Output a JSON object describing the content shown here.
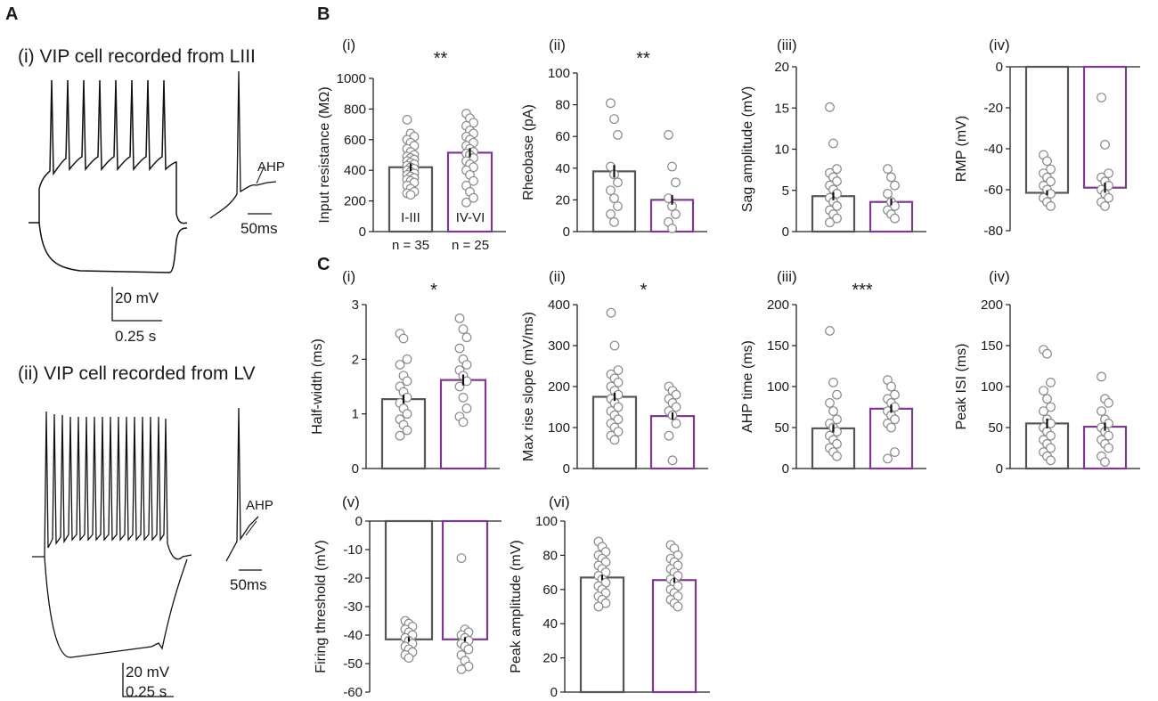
{
  "panel_labels": {
    "a": "A",
    "b": "B",
    "c": "C"
  },
  "traces": {
    "cell_i_title": "(i) VIP cell recorded from LIII",
    "cell_ii_title": "(ii) VIP cell recorded from LV",
    "scale_voltage": "20 mV",
    "scale_time": "0.25 s",
    "inset_time": "50ms",
    "ahp_label": "AHP"
  },
  "group_labels": {
    "g1": "I-III",
    "g2": "IV-VI",
    "n1": "n = 35",
    "n2": "n = 25"
  },
  "colors": {
    "group1": "#555555",
    "group2": "#7b3a8c",
    "dots": "#8a8a8a",
    "axis": "#222222"
  },
  "chart_data": [
    {
      "id": "Bi",
      "type": "bar",
      "tag": "(i)",
      "ylabel": "Input resistance (MΩ)",
      "sig": "**",
      "ylim": [
        0,
        1000
      ],
      "ticks": [
        0,
        200,
        400,
        600,
        800,
        1000
      ],
      "categories": [
        "I-III",
        "IV-VI"
      ],
      "values": [
        420,
        515
      ],
      "sem": [
        25,
        30
      ],
      "points": [
        [
          730,
          640,
          620,
          600,
          580,
          560,
          540,
          520,
          500,
          490,
          480,
          470,
          460,
          450,
          440,
          430,
          420,
          410,
          400,
          390,
          380,
          370,
          360,
          350,
          340,
          330,
          320,
          300,
          280,
          260,
          250,
          240
        ],
        [
          770,
          740,
          710,
          690,
          660,
          640,
          620,
          600,
          580,
          560,
          540,
          520,
          510,
          500,
          480,
          460,
          440,
          420,
          400,
          370,
          330,
          300,
          260,
          220,
          190
        ]
      ]
    },
    {
      "id": "Bii",
      "type": "bar",
      "tag": "(ii)",
      "ylabel": "Rheobase (pA)",
      "sig": "**",
      "ylim": [
        0,
        100
      ],
      "ticks": [
        0,
        20,
        40,
        60,
        80,
        100
      ],
      "categories": [
        "I-III",
        "IV-VI"
      ],
      "values": [
        38,
        20
      ],
      "sem": [
        4,
        3
      ],
      "points": [
        [
          81,
          71,
          61,
          41,
          36,
          31,
          26,
          21,
          16,
          11,
          6
        ],
        [
          61,
          41,
          31,
          21,
          16,
          11,
          6,
          2
        ]
      ]
    },
    {
      "id": "Biii",
      "type": "bar",
      "tag": "(iii)",
      "ylabel": "Sag amplitude (mV)",
      "sig": "",
      "ylim": [
        0,
        20
      ],
      "ticks": [
        0,
        5,
        10,
        15,
        20
      ],
      "categories": [
        "I-III",
        "IV-VI"
      ],
      "values": [
        4.3,
        3.6
      ],
      "sem": [
        0.5,
        0.4
      ],
      "points": [
        [
          15.1,
          10.7,
          7.6,
          7.1,
          6.6,
          6.1,
          5.6,
          5.1,
          4.6,
          4.1,
          3.6,
          3.1,
          2.6,
          2.1,
          1.6,
          1.1
        ],
        [
          7.6,
          6.6,
          5.6,
          4.6,
          3.6,
          3.1,
          2.6,
          2.1,
          1.6
        ]
      ]
    },
    {
      "id": "Biv",
      "type": "bar",
      "tag": "(iv)",
      "ylabel": "RMP (mV)",
      "sig": "",
      "ylim": [
        -80,
        0
      ],
      "ticks": [
        0,
        -20,
        -40,
        -60,
        -80
      ],
      "categories": [
        "I-III",
        "IV-VI"
      ],
      "values": [
        -61.5,
        -59
      ],
      "sem": [
        1.2,
        2.5
      ],
      "points": [
        [
          -43,
          -46,
          -50,
          -52,
          -54,
          -56,
          -58,
          -60,
          -62,
          -64,
          -66,
          -68
        ],
        [
          -15,
          -38,
          -52,
          -54,
          -56,
          -58,
          -60,
          -62,
          -64,
          -66,
          -68
        ]
      ]
    },
    {
      "id": "Ci",
      "type": "bar",
      "tag": "(i)",
      "ylabel": "Half-width (ms)",
      "sig": "*",
      "ylim": [
        0,
        3
      ],
      "ticks": [
        0,
        1,
        2,
        3
      ],
      "categories": [
        "I-III",
        "IV-VI"
      ],
      "values": [
        1.27,
        1.62
      ],
      "sem": [
        0.08,
        0.1
      ],
      "points": [
        [
          2.47,
          2.38,
          2.0,
          1.9,
          1.7,
          1.6,
          1.5,
          1.4,
          1.3,
          1.2,
          1.1,
          1.0,
          0.9,
          0.8,
          0.7,
          0.6
        ],
        [
          2.75,
          2.55,
          2.4,
          2.2,
          2.0,
          1.9,
          1.8,
          1.7,
          1.6,
          1.5,
          1.3,
          1.1,
          0.95,
          0.85
        ]
      ]
    },
    {
      "id": "Cii",
      "type": "bar",
      "tag": "(ii)",
      "ylabel": "Max rise slope (mV/ms)",
      "sig": "*",
      "ylim": [
        0,
        400
      ],
      "ticks": [
        0,
        100,
        200,
        300,
        400
      ],
      "categories": [
        "I-III",
        "IV-VI"
      ],
      "values": [
        175,
        128
      ],
      "sem": [
        10,
        9
      ],
      "points": [
        [
          380,
          300,
          240,
          230,
          220,
          210,
          200,
          190,
          180,
          170,
          160,
          150,
          140,
          130,
          120,
          110,
          100,
          90,
          80,
          70
        ],
        [
          200,
          190,
          180,
          170,
          160,
          150,
          140,
          130,
          110,
          80,
          20
        ]
      ]
    },
    {
      "id": "Ciii",
      "type": "bar",
      "tag": "(iii)",
      "ylabel": "AHP time (ms)",
      "sig": "***",
      "ylim": [
        0,
        200
      ],
      "ticks": [
        0,
        50,
        100,
        150,
        200
      ],
      "categories": [
        "I-III",
        "IV-VI"
      ],
      "values": [
        49,
        73
      ],
      "sem": [
        5,
        5
      ],
      "points": [
        [
          168,
          105,
          90,
          80,
          70,
          60,
          55,
          50,
          45,
          40,
          35,
          30,
          25,
          20,
          15
        ],
        [
          108,
          100,
          90,
          85,
          80,
          75,
          70,
          65,
          60,
          55,
          50,
          20,
          12
        ]
      ]
    },
    {
      "id": "Civ",
      "type": "bar",
      "tag": "(iv)",
      "ylabel": "Peak ISI (ms)",
      "sig": "",
      "ylim": [
        0,
        200
      ],
      "ticks": [
        0,
        50,
        100,
        150,
        200
      ],
      "categories": [
        "I-III",
        "IV-VI"
      ],
      "values": [
        55,
        51
      ],
      "sem": [
        6,
        5
      ],
      "points": [
        [
          145,
          140,
          105,
          95,
          85,
          75,
          70,
          60,
          55,
          50,
          45,
          40,
          35,
          30,
          25,
          20,
          15,
          10
        ],
        [
          112,
          85,
          80,
          70,
          60,
          55,
          50,
          45,
          40,
          35,
          30,
          25,
          15,
          8
        ]
      ]
    },
    {
      "id": "Cv",
      "type": "bar",
      "tag": "(v)",
      "ylabel": "Firing threshold (mV)",
      "sig": "",
      "ylim": [
        -60,
        0
      ],
      "ticks": [
        0,
        -10,
        -20,
        -30,
        -40,
        -50,
        -60
      ],
      "categories": [
        "I-III",
        "IV-VI"
      ],
      "values": [
        -41.5,
        -41.5
      ],
      "sem": [
        0.8,
        0.8
      ],
      "points": [
        [
          -35,
          -36,
          -37,
          -38,
          -39,
          -40,
          -41,
          -42,
          -43,
          -44,
          -45,
          -46,
          -47,
          -48
        ],
        [
          -13,
          -38,
          -39,
          -40,
          -41,
          -42,
          -43,
          -44,
          -45,
          -47,
          -49,
          -51,
          -52
        ]
      ]
    },
    {
      "id": "Cvi",
      "type": "bar",
      "tag": "(vi)",
      "ylabel": "Peak amplitude (mV)",
      "sig": "",
      "ylim": [
        0,
        100
      ],
      "ticks": [
        0,
        20,
        40,
        60,
        80,
        100
      ],
      "categories": [
        "I-III",
        "IV-VI"
      ],
      "values": [
        67,
        65.5
      ],
      "sem": [
        1.5,
        1.5
      ],
      "points": [
        [
          88,
          85,
          82,
          80,
          78,
          76,
          74,
          72,
          70,
          68,
          66,
          64,
          62,
          60,
          58,
          56,
          54,
          52,
          50
        ],
        [
          86,
          84,
          80,
          78,
          76,
          74,
          72,
          70,
          68,
          66,
          64,
          62,
          60,
          58,
          56,
          54,
          52,
          50
        ]
      ]
    }
  ]
}
